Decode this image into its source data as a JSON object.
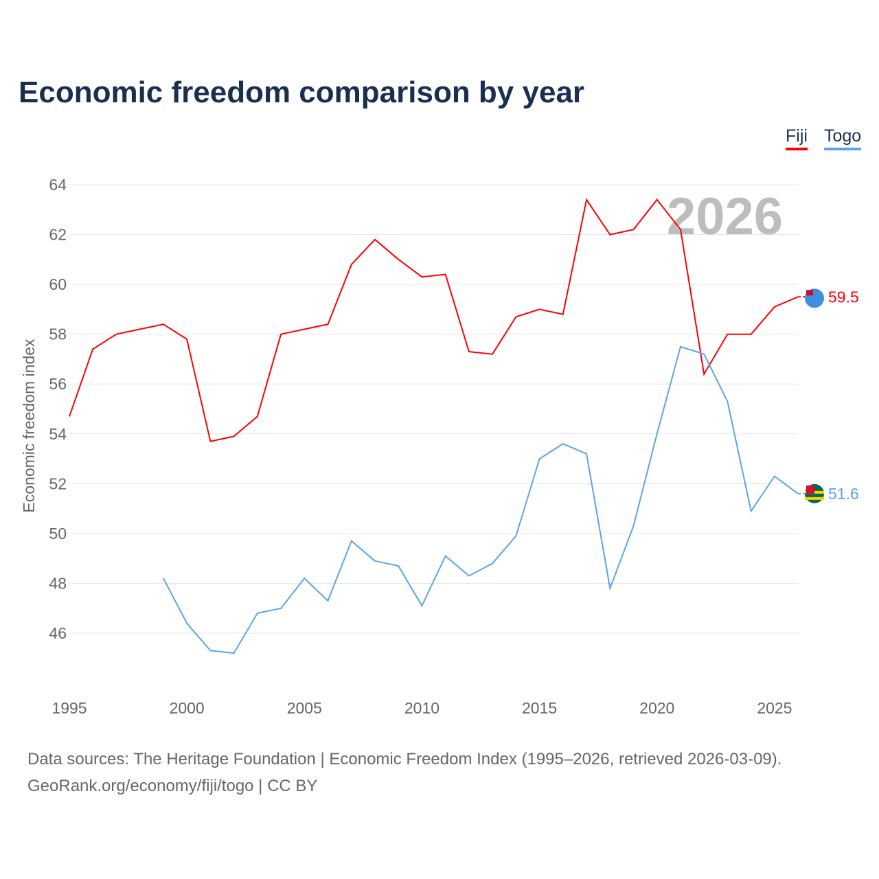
{
  "title": "Economic freedom comparison by year",
  "watermark_year": "2026",
  "footer": {
    "line1": "Data sources: The Heritage Foundation | Economic Freedom Index (1995–2026, retrieved 2026-03-09).",
    "line2": "GeoRank.org/economy/fiji/togo | CC BY"
  },
  "chart_data": {
    "type": "line",
    "title": "Economic freedom comparison by year",
    "xlabel": "",
    "ylabel": "Economic freedom index",
    "xlim": [
      1995,
      2026
    ],
    "ylim": [
      44,
      64.5
    ],
    "xticks": [
      1995,
      2000,
      2005,
      2010,
      2015,
      2020,
      2025
    ],
    "yticks": [
      46,
      48,
      50,
      52,
      54,
      56,
      58,
      60,
      62,
      64
    ],
    "grid": true,
    "legend_position": "top-right",
    "series": [
      {
        "name": "Fiji",
        "color": "#ff0000",
        "end_label": "59.5",
        "x": [
          1995,
          1996,
          1997,
          1998,
          1999,
          2000,
          2001,
          2002,
          2003,
          2004,
          2005,
          2006,
          2007,
          2008,
          2009,
          2010,
          2011,
          2012,
          2013,
          2014,
          2015,
          2016,
          2017,
          2018,
          2019,
          2020,
          2021,
          2022,
          2023,
          2024,
          2025,
          2026
        ],
        "values": [
          54.7,
          57.4,
          58.0,
          58.2,
          58.4,
          57.8,
          53.7,
          53.9,
          54.7,
          58.0,
          58.2,
          58.4,
          60.8,
          61.8,
          61.0,
          60.3,
          60.4,
          57.3,
          57.2,
          58.7,
          59.0,
          58.8,
          63.4,
          62.0,
          62.2,
          63.4,
          62.2,
          56.4,
          58.0,
          58.0,
          59.1,
          59.5
        ]
      },
      {
        "name": "Togo",
        "color": "#5ba3e8",
        "end_label": "51.6",
        "x": [
          1999,
          2000,
          2001,
          2002,
          2003,
          2004,
          2005,
          2006,
          2007,
          2008,
          2009,
          2010,
          2011,
          2012,
          2013,
          2014,
          2015,
          2016,
          2017,
          2018,
          2019,
          2020,
          2021,
          2022,
          2023,
          2024,
          2025,
          2026
        ],
        "values": [
          48.2,
          46.4,
          45.3,
          45.2,
          46.8,
          47.0,
          48.2,
          47.3,
          49.7,
          48.9,
          48.7,
          47.1,
          49.1,
          48.3,
          48.8,
          49.9,
          53.0,
          53.6,
          53.2,
          47.8,
          50.3,
          54.0,
          57.5,
          57.2,
          55.3,
          50.9,
          52.3,
          51.6
        ]
      }
    ]
  }
}
